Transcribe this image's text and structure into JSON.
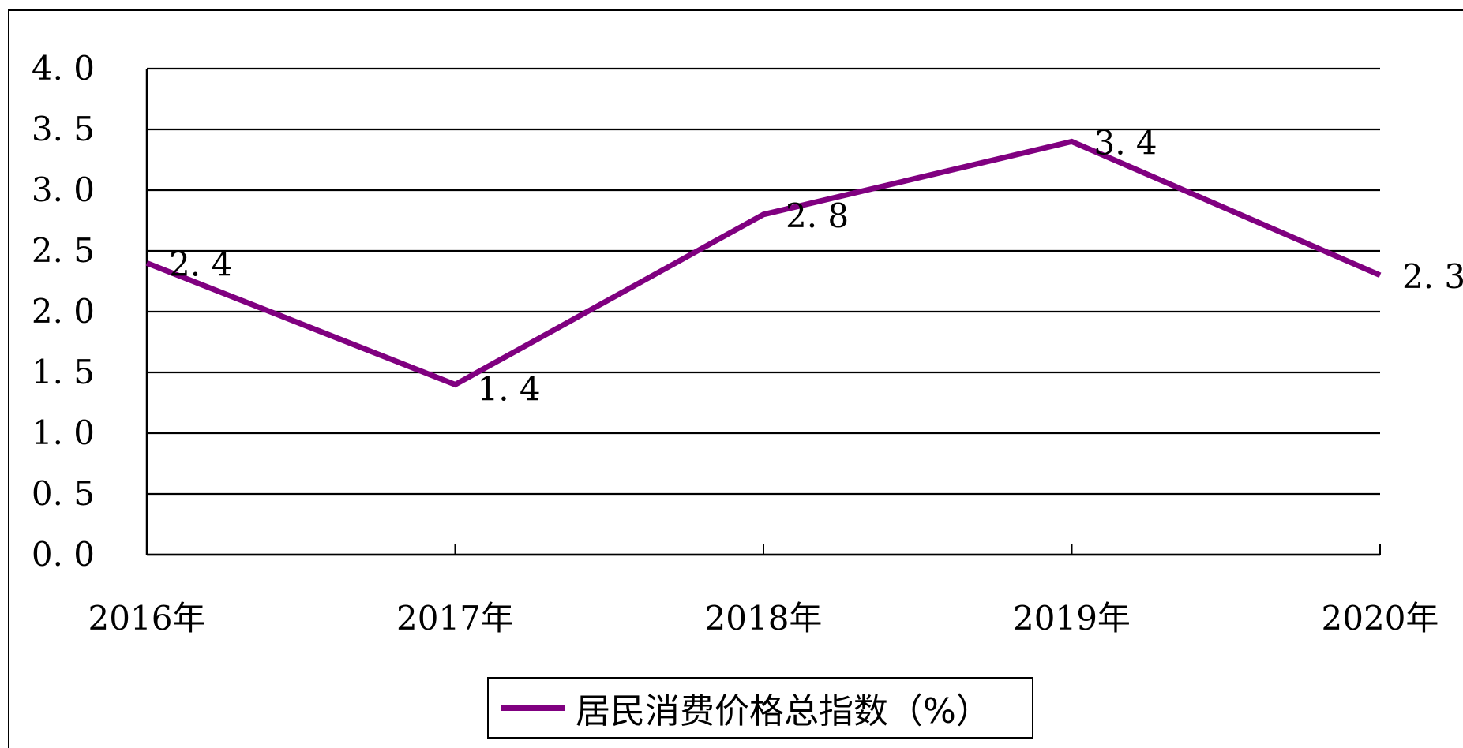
{
  "colors": {
    "series": "#800080",
    "grid": "#000000",
    "background": "#ffffff"
  },
  "chart_data": {
    "type": "line",
    "title": "",
    "xlabel": "",
    "ylabel": "",
    "categories": [
      "2016年",
      "2017年",
      "2018年",
      "2019年",
      "2020年"
    ],
    "series": [
      {
        "name": "居民消费价格总指数（%）",
        "values": [
          2.4,
          1.4,
          2.8,
          3.4,
          2.3
        ]
      }
    ],
    "data_labels": [
      "2.4",
      "1.4",
      "2.8",
      "3.4",
      "2.3"
    ],
    "ylim": [
      0,
      4.0
    ],
    "y_ticks": [
      "0.0",
      "0.5",
      "1.0",
      "1.5",
      "2.0",
      "2.5",
      "3.0",
      "3.5",
      "4.0"
    ],
    "grid": true,
    "legend_position": "bottom-center"
  }
}
